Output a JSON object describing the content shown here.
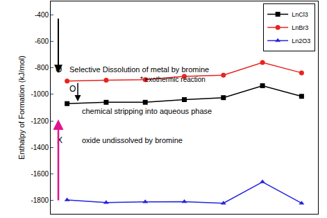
{
  "chart_data": {
    "type": "line",
    "y_label": "Enthalpy of Formation (kJ/mol)",
    "categories": [
      null,
      null,
      null,
      null,
      null,
      null,
      null
    ],
    "series": [
      {
        "name": "LnCl3",
        "color": "#000000",
        "marker": "square",
        "values": [
          -1070,
          -1060,
          -1060,
          -1040,
          -1025,
          -935,
          -1015
        ]
      },
      {
        "name": "LnBr3",
        "color": "#e8231f",
        "marker": "circle",
        "values": [
          -900,
          -893,
          -890,
          -865,
          -855,
          -760,
          -838
        ]
      },
      {
        "name": "Ln2O3",
        "color": "#2424e0",
        "marker": "triangle",
        "values": [
          -1795,
          -1815,
          -1810,
          -1808,
          -1820,
          -1660,
          -1820
        ]
      }
    ],
    "ylim": [
      -1900,
      -300
    ],
    "yticks": [
      -1800,
      -1600,
      -1400,
      -1200,
      -1000,
      -800,
      -600,
      -400
    ],
    "tick_labels": "y",
    "grid": false,
    "legend": "top right",
    "annotations": [
      "O",
      "Selective Dissolution of metal by bromine",
      "* exothermic reaction",
      "O",
      "chemical stripping into aqueous phase",
      "X",
      "oxide undissolved by bromine"
    ]
  }
}
